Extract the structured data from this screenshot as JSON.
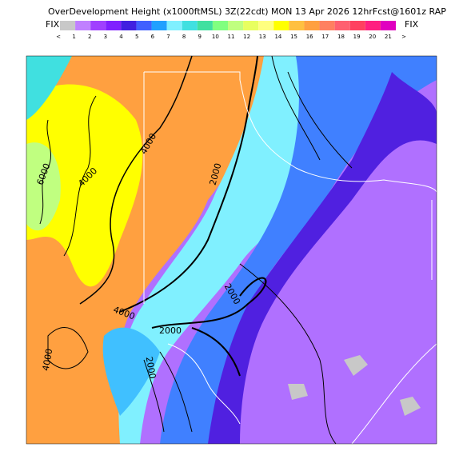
{
  "header": {
    "title": "OverDevelopment Height (x1000ftMSL) 3Z(22cdt) MON 13 Apr 2026 12hrFcst@1601z RAP"
  },
  "legend": {
    "left": "FIX",
    "right": "FIX",
    "labels": [
      "<",
      "1",
      "2",
      "3",
      "4",
      "5",
      "6",
      "7",
      "8",
      "9",
      "10",
      "11",
      "12",
      "13",
      "14",
      "15",
      "16",
      "17",
      "18",
      "19",
      "20",
      "21",
      ">"
    ],
    "colors": [
      "#c8c8c8",
      "#c080ff",
      "#a040ff",
      "#8020ff",
      "#4020e0",
      "#4060ff",
      "#20a0ff",
      "#80f0ff",
      "#40e0e0",
      "#40e0a0",
      "#80ff80",
      "#c0ff80",
      "#e8ff60",
      "#ffff80",
      "#ffff00",
      "#ffc040",
      "#ffa040",
      "#ff8060",
      "#ff6070",
      "#ff4060",
      "#ff2080",
      "#e000c0"
    ]
  },
  "contour_labels": [
    "6000",
    "4000",
    "4000",
    "2000",
    "2000",
    "4000",
    "2000",
    "4000",
    "2000"
  ]
}
